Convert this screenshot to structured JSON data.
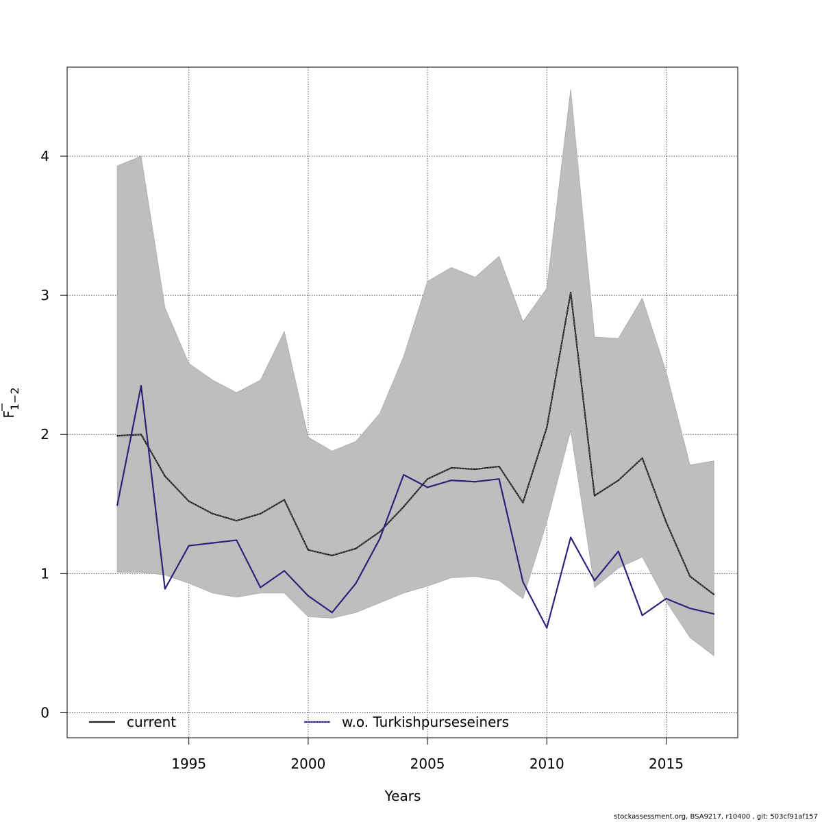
{
  "chart_data": {
    "type": "line",
    "xlabel": "Years",
    "ylabel": {
      "main": "F",
      "subscript": "1−2"
    },
    "xlim": [
      1989.9,
      2018.0
    ],
    "ylim": [
      -0.18,
      4.64
    ],
    "x_ticks": [
      1995,
      2000,
      2005,
      2010,
      2015
    ],
    "y_ticks": [
      0,
      1,
      2,
      3,
      4
    ],
    "grid": true,
    "legend_position": "bottom",
    "x": [
      1992,
      1993,
      1994,
      1995,
      1996,
      1997,
      1998,
      1999,
      2000,
      2001,
      2002,
      2003,
      2004,
      2005,
      2006,
      2007,
      2008,
      2009,
      2010,
      2011,
      2012,
      2013,
      2014,
      2015,
      2016,
      2017
    ],
    "band": {
      "upper": [
        3.93,
        4.0,
        2.91,
        2.51,
        2.39,
        2.3,
        2.39,
        2.74,
        1.98,
        1.88,
        1.95,
        2.15,
        2.56,
        3.1,
        3.2,
        3.13,
        3.28,
        2.81,
        3.05,
        4.48,
        2.7,
        2.69,
        2.98,
        2.45,
        1.78,
        1.81
      ],
      "lower": [
        1.01,
        1.01,
        0.99,
        0.93,
        0.86,
        0.83,
        0.86,
        0.86,
        0.69,
        0.68,
        0.72,
        0.79,
        0.86,
        0.91,
        0.97,
        0.98,
        0.95,
        0.82,
        1.37,
        2.03,
        0.9,
        1.04,
        1.12,
        0.8,
        0.54,
        0.41
      ],
      "color": "#bebebe"
    },
    "series": [
      {
        "name": "current",
        "color": "#222222",
        "values": [
          1.99,
          2.0,
          1.7,
          1.52,
          1.43,
          1.38,
          1.43,
          1.53,
          1.17,
          1.13,
          1.18,
          1.3,
          1.48,
          1.68,
          1.76,
          1.75,
          1.77,
          1.51,
          2.05,
          3.02,
          1.56,
          1.67,
          1.83,
          1.37,
          0.98,
          0.85
        ]
      },
      {
        "name": "w.o. Turkishpurseseiners",
        "color": "#2b227a",
        "values": [
          1.49,
          2.35,
          0.89,
          1.2,
          1.22,
          1.24,
          0.9,
          1.02,
          0.84,
          0.72,
          0.93,
          1.25,
          1.71,
          1.62,
          1.67,
          1.66,
          1.68,
          0.94,
          0.61,
          1.26,
          0.95,
          1.16,
          0.7,
          0.82,
          0.75,
          0.71
        ]
      }
    ]
  },
  "footer": "stockassessment.org, BSA9217, r10400 , git: 503cf91af157"
}
